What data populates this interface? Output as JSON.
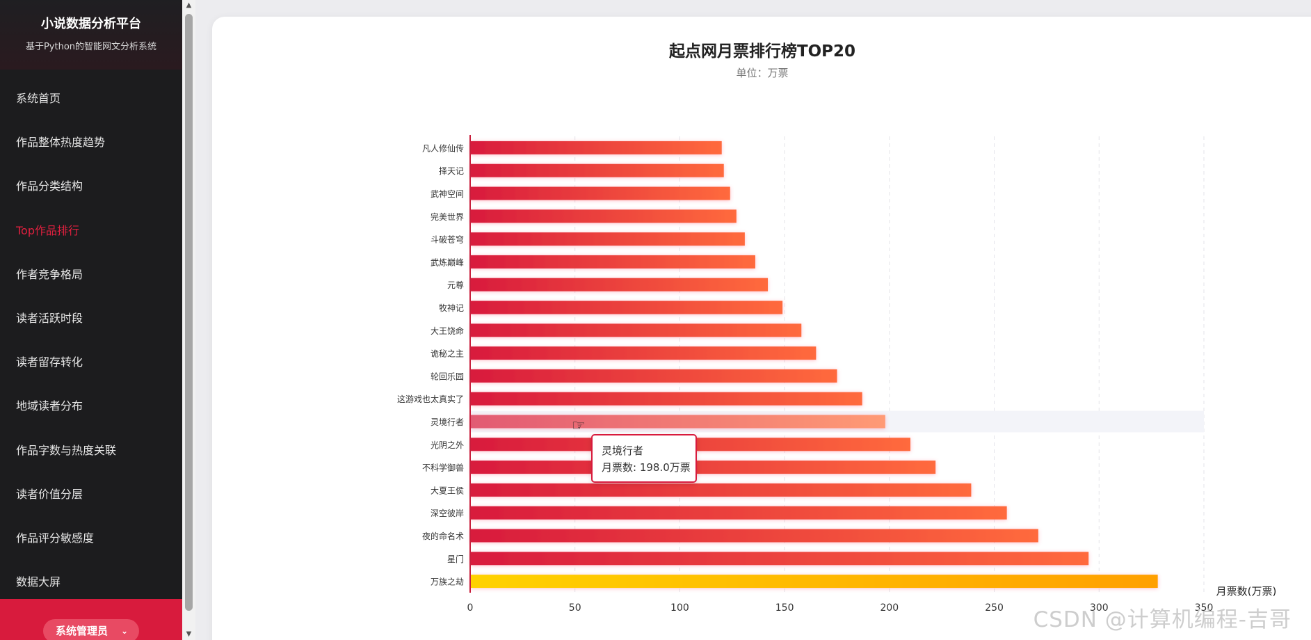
{
  "sidebar": {
    "title": "小说数据分析平台",
    "subtitle": "基于Python的智能网文分析系统",
    "items": [
      {
        "label": "系统首页",
        "active": false
      },
      {
        "label": "作品整体热度趋势",
        "active": false
      },
      {
        "label": "作品分类结构",
        "active": false
      },
      {
        "label": "Top作品排行",
        "active": true
      },
      {
        "label": "作者竞争格局",
        "active": false
      },
      {
        "label": "读者活跃时段",
        "active": false
      },
      {
        "label": "读者留存转化",
        "active": false
      },
      {
        "label": "地域读者分布",
        "active": false
      },
      {
        "label": "作品字数与热度关联",
        "active": false
      },
      {
        "label": "读者价值分层",
        "active": false
      },
      {
        "label": "作品评分敏感度",
        "active": false
      },
      {
        "label": "数据大屏",
        "active": false
      }
    ],
    "user_label": "系统管理员",
    "accent_color": "#d81b3d"
  },
  "tooltip": {
    "title": "灵境行者",
    "value_text": "月票数: 198.0万票"
  },
  "watermark": "CSDN @计算机编程-吉哥",
  "chart_data": {
    "type": "bar",
    "orientation": "horizontal",
    "title": "起点网月票排行榜TOP20",
    "subtitle": "单位：万票",
    "xlabel": "月票数(万票)",
    "ylabel": "",
    "xlim": [
      0,
      350
    ],
    "xticks": [
      0,
      50,
      100,
      150,
      200,
      250,
      300,
      350
    ],
    "grid": true,
    "categories": [
      "凡人修仙传",
      "择天记",
      "武神空间",
      "完美世界",
      "斗破苍穹",
      "武炼巅峰",
      "元尊",
      "牧神记",
      "大王饶命",
      "诡秘之主",
      "轮回乐园",
      "这游戏也太真实了",
      "灵境行者",
      "光阴之外",
      "不科学御兽",
      "大夏王侯",
      "深空彼岸",
      "夜的命名术",
      "星门",
      "万族之劫"
    ],
    "values": [
      120,
      121,
      124,
      127,
      131,
      136,
      142,
      149,
      158,
      165,
      175,
      187,
      198,
      210,
      222,
      239,
      256,
      271,
      295,
      328
    ],
    "highlight_index": 12,
    "colors": {
      "bar_start": "#d81b3d",
      "bar_end": "#ff6a3d",
      "top_start": "#ffd200",
      "top_end": "#ffa000",
      "axis": "#c81e3c"
    }
  }
}
